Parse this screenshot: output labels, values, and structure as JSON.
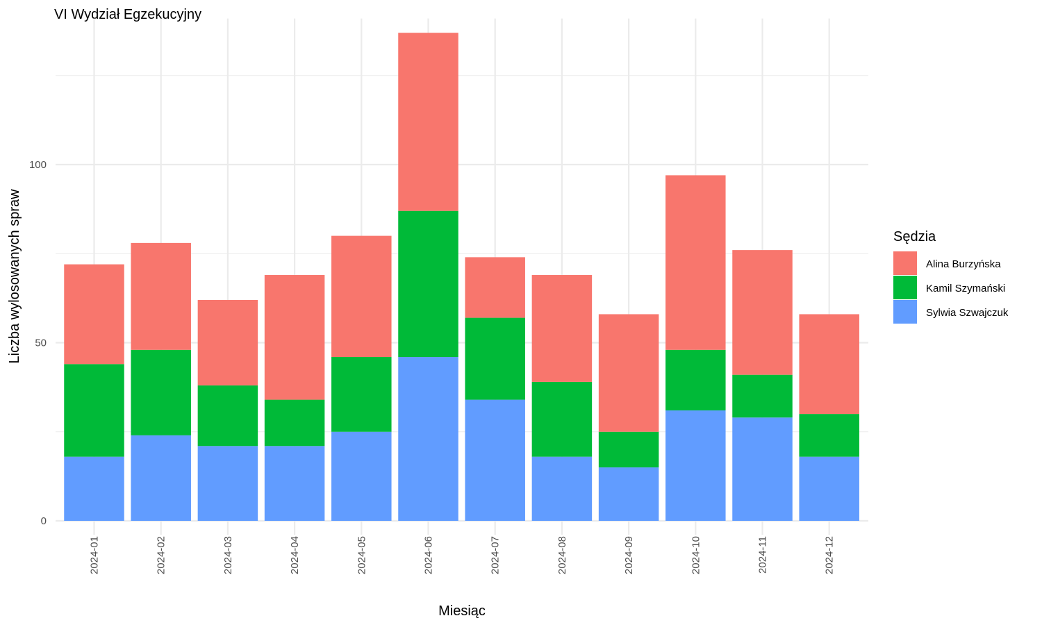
{
  "chart_data": {
    "type": "bar",
    "stacked": true,
    "title": "VI Wydział Egzekucyjny",
    "xlabel": "Miesiąc",
    "ylabel": "Liczba wylosowanych spraw",
    "categories": [
      "2024-01",
      "2024-02",
      "2024-03",
      "2024-04",
      "2024-05",
      "2024-06",
      "2024-07",
      "2024-08",
      "2024-09",
      "2024-10",
      "2024-11",
      "2024-12"
    ],
    "yticks": [
      0,
      50,
      100
    ],
    "ylim": [
      0,
      141
    ],
    "grid": true,
    "legend": {
      "title": "Sędzia",
      "position": "right"
    },
    "series": [
      {
        "name": "Sylwia Szwajczuk",
        "color": "#619cff",
        "values": [
          18,
          24,
          21,
          21,
          25,
          46,
          34,
          18,
          15,
          31,
          29,
          18
        ]
      },
      {
        "name": "Kamil Szymański",
        "color": "#00ba38",
        "values": [
          26,
          24,
          17,
          13,
          21,
          41,
          23,
          21,
          10,
          17,
          12,
          12
        ]
      },
      {
        "name": "Alina Burzyńska",
        "color": "#f8766d",
        "values": [
          28,
          30,
          24,
          35,
          34,
          50,
          17,
          30,
          33,
          49,
          35,
          28
        ]
      }
    ]
  }
}
